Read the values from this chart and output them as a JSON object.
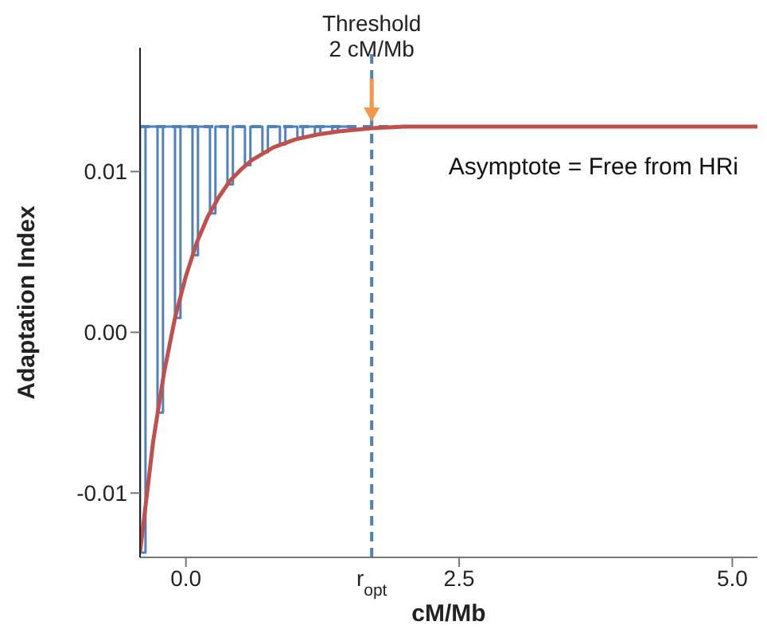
{
  "chart_data": {
    "type": "line",
    "xlabel": "cM/Mb",
    "ylabel": "Adaptation Index",
    "xlim": [
      -0.42,
      5.23
    ],
    "ylim": [
      -0.014,
      0.0177
    ],
    "xticks": [
      {
        "value": 0,
        "label": "0.0"
      },
      {
        "value": 2.5,
        "label": "2.5"
      },
      {
        "value": 5,
        "label": "5.0"
      }
    ],
    "yticks": [
      {
        "value": -0.01,
        "label": "-0.01"
      },
      {
        "value": 0,
        "label": "0.00"
      },
      {
        "value": 0.01,
        "label": "0.01"
      }
    ],
    "series": [
      {
        "color": "#4f81bd",
        "x": [
          -0.42,
          -0.42,
          -0.37,
          -0.37,
          -0.26,
          -0.26,
          -0.21,
          -0.21,
          -0.1,
          -0.1,
          -0.05,
          -0.05,
          0.06,
          0.06,
          0.11,
          0.11,
          0.22,
          0.22,
          0.27,
          0.27,
          0.38,
          0.38,
          0.43,
          0.43,
          0.54,
          0.54,
          0.59,
          0.59,
          0.7,
          0.7,
          0.75,
          0.75,
          0.86,
          0.86,
          0.91,
          0.91,
          1.02,
          1.02,
          1.07,
          1.07,
          1.18,
          1.18,
          1.23,
          1.23,
          1.34,
          1.34,
          1.39,
          1.39,
          1.5,
          1.5,
          1.55,
          1.55
        ],
        "values": [
          0.0128,
          -0.0137,
          -0.0137,
          0.0128,
          0.0128,
          -0.005,
          -0.005,
          0.0128,
          0.0128,
          0.0009,
          0.0009,
          0.0128,
          0.0128,
          0.0048,
          0.0048,
          0.0128,
          0.0128,
          0.0074,
          0.0074,
          0.0128,
          0.0128,
          0.0092,
          0.0092,
          0.0128,
          0.0128,
          0.0104,
          0.0104,
          0.0128,
          0.0128,
          0.0112,
          0.0112,
          0.0128,
          0.0128,
          0.0117,
          0.0117,
          0.0128,
          0.0128,
          0.0121,
          0.0121,
          0.0128,
          0.0128,
          0.0123,
          0.0123,
          0.0128,
          0.0128,
          0.0125,
          0.0125,
          0.0128,
          0.0128,
          0.0126,
          0.0126,
          0.0128
        ]
      },
      {
        "color": "#c0504d",
        "x": [
          -0.42,
          -0.3,
          -0.2,
          -0.1,
          0,
          0.1,
          0.2,
          0.3,
          0.4,
          0.5,
          0.6,
          0.8,
          1.0,
          1.2,
          1.4,
          1.7,
          2.0,
          2.5,
          3,
          4,
          5.23
        ],
        "values": [
          -0.0137,
          -0.0068,
          -0.0025,
          0.0009,
          0.0035,
          0.0056,
          0.0072,
          0.0084,
          0.0094,
          0.0101,
          0.0107,
          0.0115,
          0.012,
          0.0123,
          0.0125,
          0.0127,
          0.0128,
          0.0128,
          0.0128,
          0.0128,
          0.0128
        ]
      }
    ],
    "ref_lines": [
      {
        "axis": "y",
        "value": 0.0128,
        "label": "Asymptote = Free from HRi",
        "color": "#4f81bd",
        "line_style": "dashed"
      },
      {
        "axis": "x",
        "value": 1.7,
        "label": "r$_{opt}$",
        "color": "#4f81bd",
        "line_style": "dashed"
      }
    ],
    "annotations": [
      {
        "text": "Threshold\n2 cM/Mb",
        "x": 1.7,
        "y": 0.0128
      }
    ],
    "marker": "none",
    "line_style": "solid",
    "grid": false
  }
}
